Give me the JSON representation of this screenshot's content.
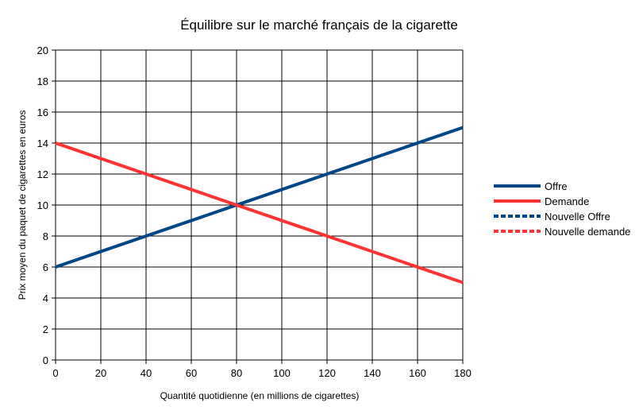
{
  "chart_data": {
    "type": "line",
    "title": "Équilibre sur le marché français de la cigarette",
    "xlabel": "Quantité quotidienne (en millions de cigarettes)",
    "ylabel": "Prix moyen du paquet de cigarettes en euros",
    "xlim": [
      0,
      180
    ],
    "ylim": [
      0,
      20
    ],
    "xticks": [
      0,
      20,
      40,
      60,
      80,
      100,
      120,
      140,
      160,
      180
    ],
    "yticks": [
      0,
      2,
      4,
      6,
      8,
      10,
      12,
      14,
      16,
      18,
      20
    ],
    "grid": true,
    "legend_position": "right",
    "series": [
      {
        "name": "Offre",
        "color": "#004586",
        "style": "solid",
        "x": [
          0,
          180
        ],
        "y": [
          6,
          15
        ]
      },
      {
        "name": "Demande",
        "color": "#ff3333",
        "style": "solid",
        "x": [
          0,
          180
        ],
        "y": [
          14,
          5
        ]
      },
      {
        "name": "Nouvelle Offre",
        "color": "#004586",
        "style": "dashed",
        "x": [],
        "y": []
      },
      {
        "name": "Nouvelle demande",
        "color": "#ff3333",
        "style": "dashed",
        "x": [],
        "y": []
      }
    ]
  }
}
